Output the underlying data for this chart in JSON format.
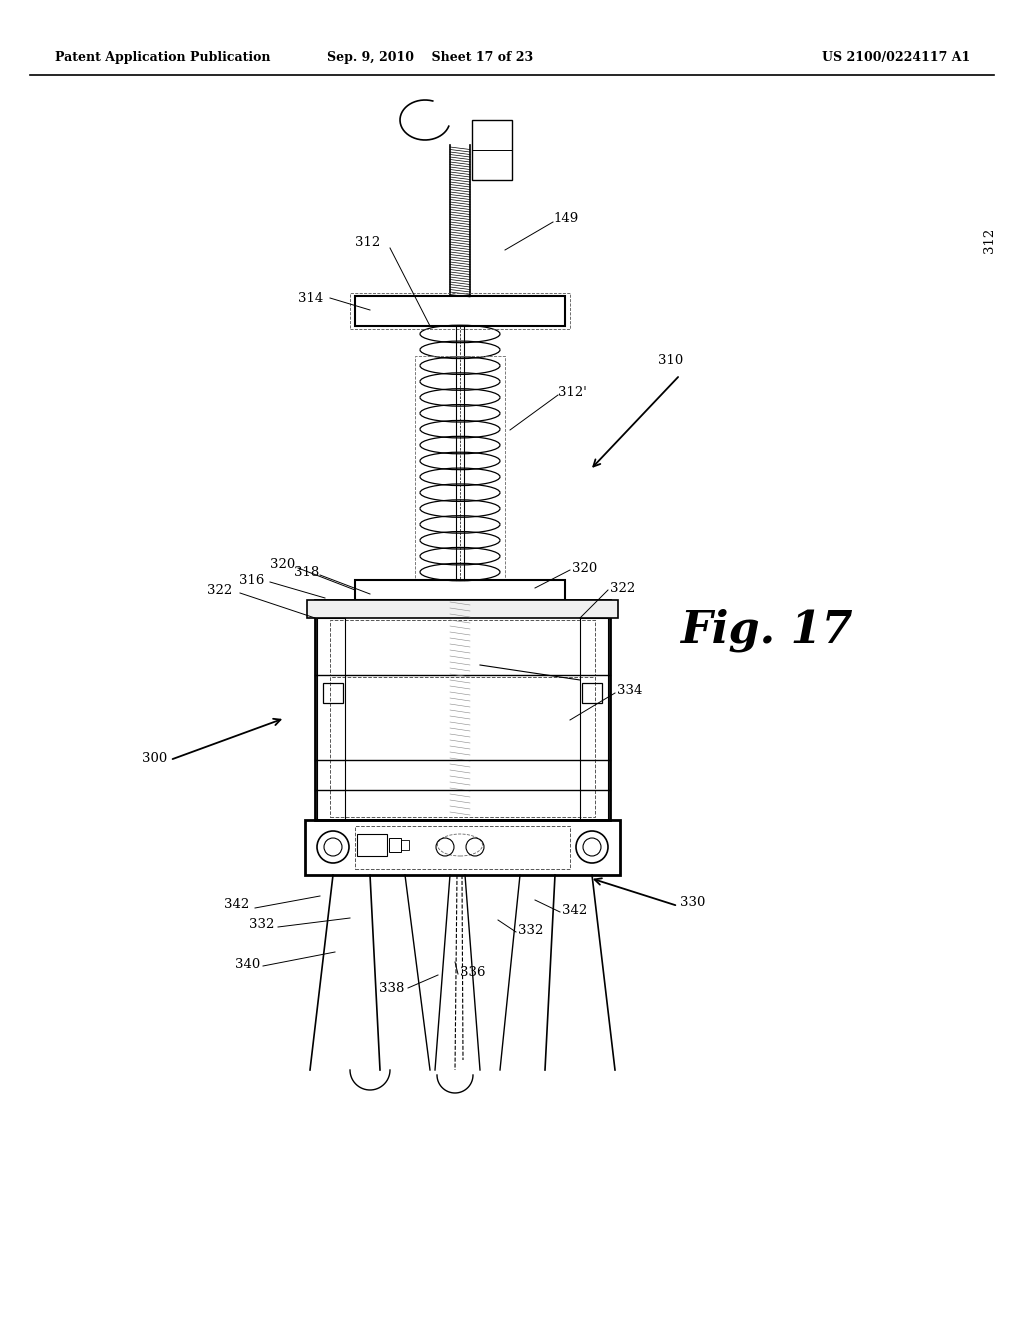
{
  "header_left": "Patent Application Publication",
  "header_center": "Sep. 9, 2010    Sheet 17 of 23",
  "header_right": "US 2100/0224117 A1",
  "fig_label": "Fig. 17",
  "background_color": "#ffffff"
}
